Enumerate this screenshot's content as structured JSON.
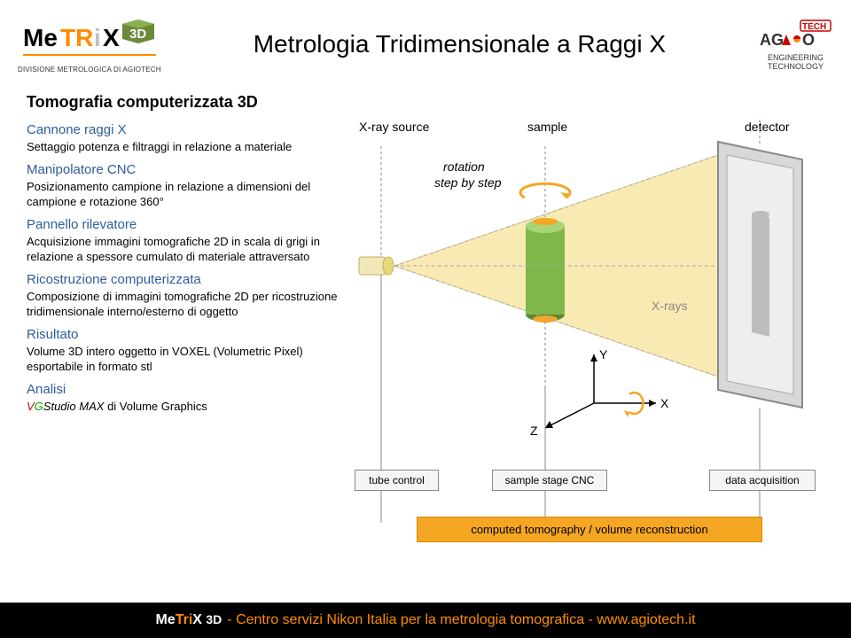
{
  "header": {
    "logo_subtitle": "DIVISIONE METROLOGICA DI AGIOTECH",
    "main_title": "Metrologia Tridimensionale a Raggi X",
    "agio_sub1": "ENGINEERING",
    "agio_sub2": "TECHNOLOGY"
  },
  "section_title": "Tomografia computerizzata 3D",
  "items": [
    {
      "title": "Cannone raggi X",
      "desc": "Settaggio potenza e filtraggi in relazione a materiale"
    },
    {
      "title": "Manipolatore CNC",
      "desc": "Posizionamento campione in relazione a dimensioni del campione e rotazione 360°"
    },
    {
      "title": "Pannello rilevatore",
      "desc": "Acquisizione immagini tomografiche 2D in scala di grigi in relazione a spessore cumulato di materiale attraversato"
    },
    {
      "title": "Ricostruzione computerizzata",
      "desc": "Composizione di immagini tomografiche 2D per ricostruzione tridimensionale interno/esterno di oggetto"
    },
    {
      "title": "Risultato",
      "desc": "Volume 3D intero oggetto in VOXEL (Volumetric Pixel) esportabile in formato stl"
    },
    {
      "title": "Analisi",
      "desc": "VGStudio MAX di Volume Graphics",
      "vgs": true
    }
  ],
  "diagram": {
    "labels": {
      "xray_source": "X-ray source",
      "sample": "sample",
      "detector": "detector",
      "rotation1": "rotation",
      "rotation2": "step by step",
      "xrays": "X-rays",
      "y_axis": "Y",
      "x_axis": "X",
      "z_axis": "Z"
    },
    "boxes": {
      "tube": "tube control",
      "stage": "sample stage CNC",
      "acq": "data acquisition",
      "recon": "computed tomography / volume reconstruction"
    },
    "colors": {
      "beam": "#f9e7a8",
      "beam_stroke": "#e0c970",
      "sample_body": "#7fb848",
      "sample_top": "#a8d478",
      "sample_cap": "#f5a623",
      "detector_fill": "#d8d8d8",
      "detector_frame": "#888888",
      "xray_text": "#888888",
      "arrow": "#f5a623",
      "box_orange": "#f5a623",
      "guide_line": "#888888"
    }
  },
  "footer": {
    "brand": "MeTriX 3D",
    "text": " - Centro servizi Nikon Italia per la metrologia tomografica - www.agiotech.it"
  }
}
